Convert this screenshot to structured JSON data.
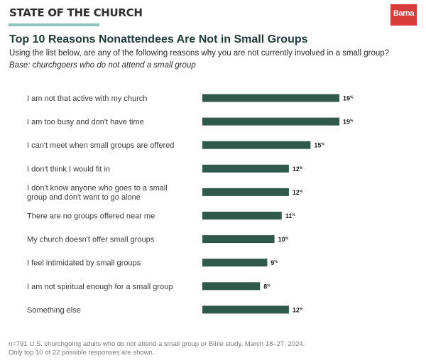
{
  "header": {
    "brand": "STATE OF THE CHURCH",
    "logo": "Barna",
    "accent_color": "#8dc3b8",
    "logo_color": "#d93a3a"
  },
  "chart_data": {
    "type": "bar",
    "orientation": "horizontal",
    "title": "Top 10 Reasons Nonattendees Are Not in Small Groups",
    "subtitle": "Using the list below, are any of the following reasons why  you are not currently involved in a small group?",
    "base": "Base: churchgoers who do not attend a small group",
    "categories": [
      [
        "I am not that active with my church"
      ],
      [
        "I am too busy and don't have time"
      ],
      [
        "I can't meet when small groups are offered"
      ],
      [
        "I don't think I would fit in"
      ],
      [
        "I don't know anyone who goes to a small",
        "group and don't want to go alone"
      ],
      [
        "There are no groups offered near me"
      ],
      [
        "My church doesn't offer small groups"
      ],
      [
        "I feel intimidated by small groups"
      ],
      [
        "I am not spiritual enough for a small group"
      ],
      [
        "Something else"
      ]
    ],
    "values": [
      19,
      19,
      15,
      12,
      12,
      11,
      10,
      9,
      8,
      12
    ],
    "value_suffix": "%",
    "bar_color": "#2f5a4b",
    "xlim": [
      0,
      19
    ]
  },
  "footnote": [
    "n=791 U.S. churchgoing adults who do not attend a small group or Bible study, March 18–27, 2024.",
    "Only top 10 of 22 possible responses are shown."
  ]
}
